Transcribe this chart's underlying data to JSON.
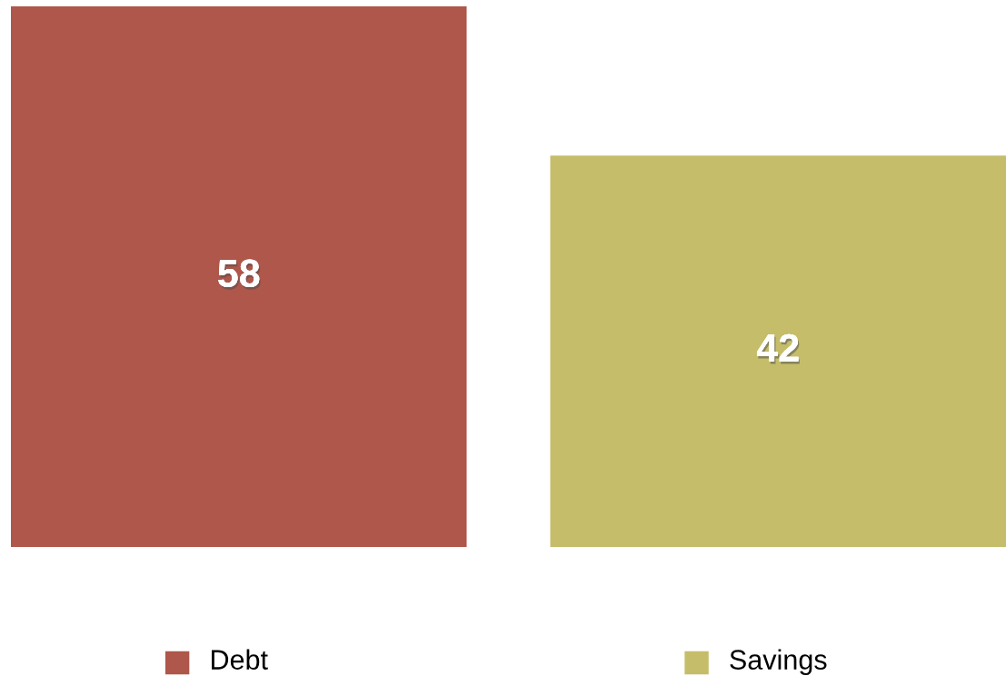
{
  "chart_data": {
    "type": "bar",
    "categories": [
      "Debt",
      "Savings"
    ],
    "values": [
      58,
      42
    ],
    "colors": [
      "#ae574a",
      "#c5bd6a"
    ],
    "data_labels": true,
    "tick_labels": "x",
    "grid": false
  }
}
